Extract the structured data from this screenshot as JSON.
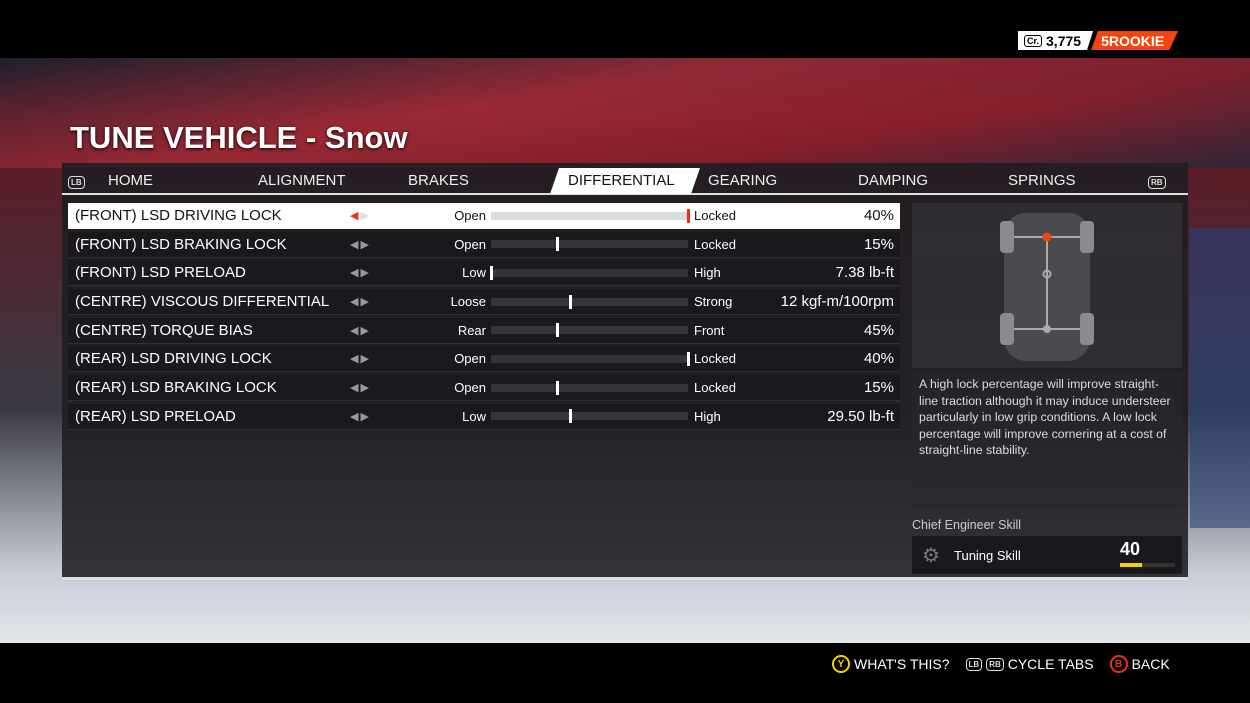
{
  "header": {
    "credits_icon": "Cr.",
    "credits": "3,775",
    "rank_level": "5",
    "rank": "ROOKIE",
    "rank_color": "#f2450f"
  },
  "title": "TUNE VEHICLE - Snow",
  "tabs": {
    "left_button": "LB",
    "right_button": "RB",
    "items": [
      {
        "label": "HOME"
      },
      {
        "label": "ALIGNMENT"
      },
      {
        "label": "BRAKES"
      },
      {
        "label": "DIFFERENTIAL",
        "active": true
      },
      {
        "label": "GEARING"
      },
      {
        "label": "DAMPING"
      },
      {
        "label": "SPRINGS"
      }
    ]
  },
  "settings": [
    {
      "label": "(FRONT) LSD DRIVING LOCK",
      "low": "Open",
      "high": "Locked",
      "value": "40%",
      "position": 1.0,
      "selected": true
    },
    {
      "label": "(FRONT) LSD BRAKING LOCK",
      "low": "Open",
      "high": "Locked",
      "value": "15%",
      "position": 0.335
    },
    {
      "label": "(FRONT) LSD PRELOAD",
      "low": "Low",
      "high": "High",
      "value": "7.38 lb-ft",
      "position": 0.0
    },
    {
      "label": "(CENTRE) VISCOUS DIFFERENTIAL",
      "low": "Loose",
      "high": "Strong",
      "value": "12 kgf-m/100rpm",
      "position": 0.4
    },
    {
      "label": "(CENTRE) TORQUE BIAS",
      "low": "Rear",
      "high": "Front",
      "value": "45%",
      "position": 0.335
    },
    {
      "label": "(REAR) LSD DRIVING LOCK",
      "low": "Open",
      "high": "Locked",
      "value": "40%",
      "position": 1.0
    },
    {
      "label": "(REAR) LSD BRAKING LOCK",
      "low": "Open",
      "high": "Locked",
      "value": "15%",
      "position": 0.335
    },
    {
      "label": "(REAR) LSD PRELOAD",
      "low": "Low",
      "high": "High",
      "value": "29.50 lb-ft",
      "position": 0.4
    }
  ],
  "description": "A high lock percentage will improve straight-line traction although it may induce understeer particularly in low grip conditions. A low lock percentage will improve cornering at a cost of straight-line stability.",
  "skill": {
    "heading": "Chief Engineer Skill",
    "name": "Tuning Skill",
    "value": "40",
    "level": 0.4,
    "icon": "gear-icon"
  },
  "footer": {
    "whats_this_button": "Y",
    "whats_this": "WHAT'S THIS?",
    "lb": "LB",
    "rb": "RB",
    "cycle_tabs": "CYCLE TABS",
    "back_button": "B",
    "back": "BACK"
  }
}
